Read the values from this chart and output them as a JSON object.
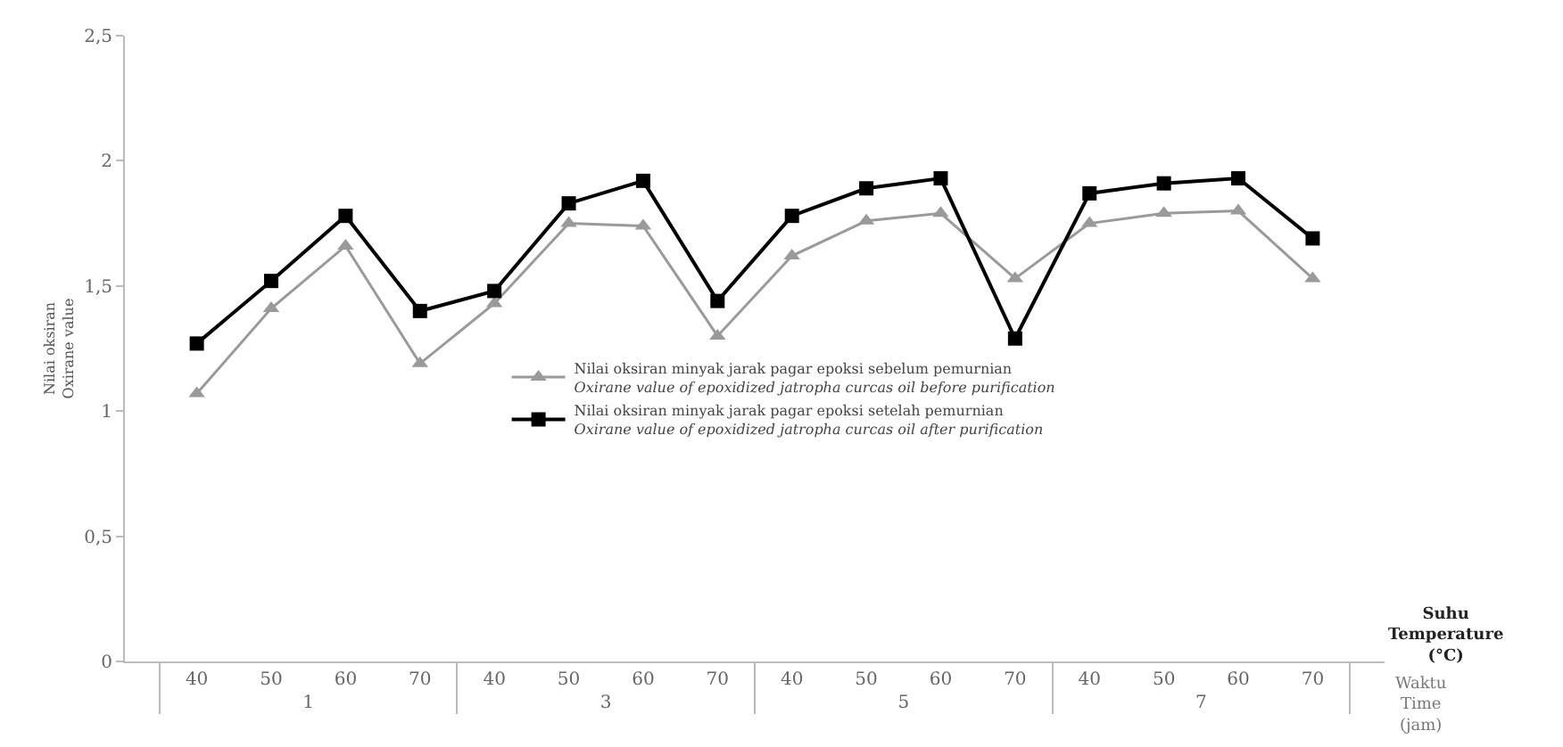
{
  "chart_data": {
    "type": "line",
    "xlabel": "Suhu\nTemperature\n(°C)",
    "ylabel": "Nilai oksiran\nOxirane value",
    "categories": [
      "40",
      "50",
      "60",
      "70",
      "40",
      "50",
      "60",
      "70",
      "40",
      "50",
      "60",
      "70",
      "40",
      "50",
      "60",
      "70"
    ],
    "annotations": [
      "1",
      "3",
      "5",
      "7",
      "Waktu\nTime\n(jam)"
    ],
    "series": [
      {
        "name": "Nilai oksiran minyak jarak pagar epoksi sebelum pemurnian\nOxirane value of epoxidized jatropha curcas oil before purification",
        "color": "#9a9a9a",
        "marker": "triangle",
        "values": [
          1.07,
          1.41,
          1.66,
          1.19,
          1.43,
          1.75,
          1.74,
          1.3,
          1.62,
          1.76,
          1.79,
          1.53,
          1.75,
          1.79,
          1.8,
          1.53
        ]
      },
      {
        "name": "Nilai oksiran minyak jarak pagar epoksi setelah pemurnian\nOxirane value of epoxidized jatropha curcas oil after purification",
        "color": "#000000",
        "marker": "square",
        "values": [
          1.27,
          1.52,
          1.78,
          1.4,
          1.48,
          1.83,
          1.92,
          1.44,
          1.78,
          1.89,
          1.93,
          1.29,
          1.87,
          1.91,
          1.93,
          1.69
        ]
      }
    ],
    "ylim": [
      0,
      2.5
    ],
    "yticks": [
      0,
      {
        "value": 0.5,
        "label": "0,5"
      },
      1,
      {
        "value": 1.5,
        "label": "1,5"
      },
      2,
      {
        "value": 2.5,
        "label": "2,5"
      }
    ],
    "legend": "center",
    "line_style": "solid"
  }
}
